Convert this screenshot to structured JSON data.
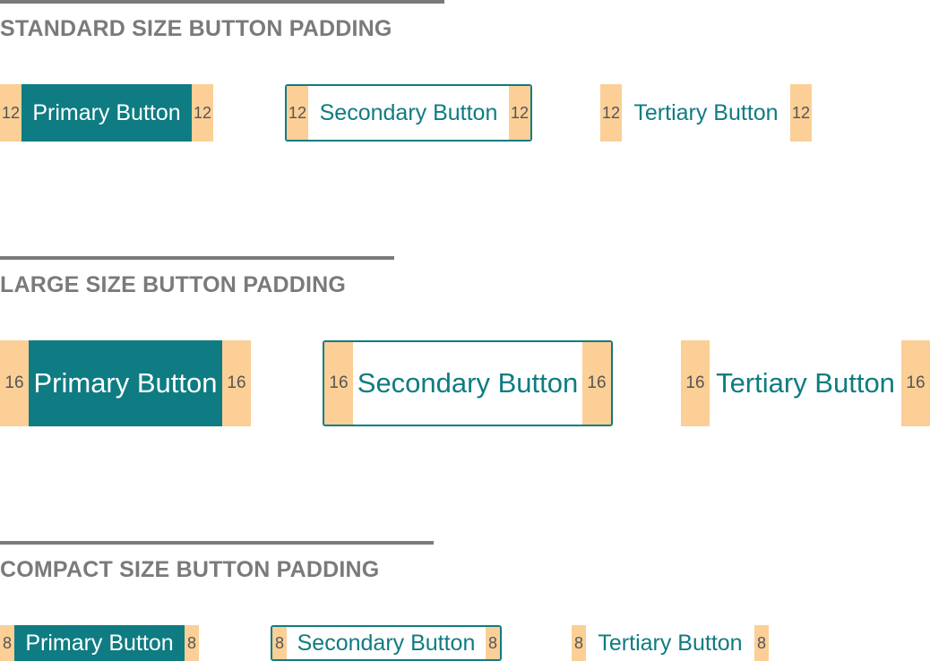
{
  "sections": {
    "standard": {
      "heading": "STANDARD SIZE BUTTON PADDING",
      "padding": "12",
      "primary": "Primary Button",
      "secondary": "Secondary Button",
      "tertiary": "Tertiary Button"
    },
    "large": {
      "heading": "LARGE SIZE BUTTON PADDING",
      "padding": "16",
      "primary": "Primary Button",
      "secondary": "Secondary Button",
      "tertiary": "Tertiary Button"
    },
    "compact": {
      "heading": "COMPACT SIZE BUTTON PADDING",
      "padding": "8",
      "primary": "Primary Button",
      "secondary": "Secondary Button",
      "tertiary": "Tertiary Button"
    }
  },
  "colors": {
    "brand_teal": "#0e7c82",
    "padding_highlight": "#fbcf96",
    "heading_gray": "#7a7a7a"
  }
}
